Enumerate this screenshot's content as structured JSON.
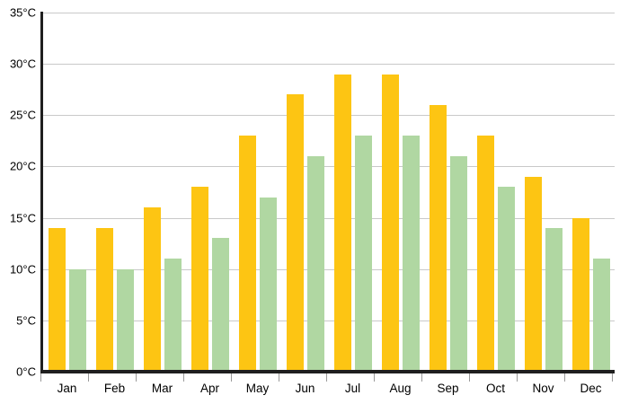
{
  "chart_data": {
    "type": "bar",
    "title": "",
    "xlabel": "",
    "ylabel": "",
    "categories": [
      "Jan",
      "Feb",
      "Mar",
      "Apr",
      "May",
      "Jun",
      "Jul",
      "Aug",
      "Sep",
      "Oct",
      "Nov",
      "Dec"
    ],
    "series": [
      {
        "name": "yellow",
        "color": "#FDC513",
        "values": [
          14,
          14,
          16,
          18,
          23,
          27,
          29,
          29,
          26,
          23,
          19,
          15
        ]
      },
      {
        "name": "green",
        "color": "#B0D7A2",
        "values": [
          10,
          10,
          11,
          13,
          17,
          21,
          23,
          23,
          21,
          18,
          14,
          11
        ]
      }
    ],
    "ylim": [
      0,
      35
    ],
    "y_ticks": [
      0,
      5,
      10,
      15,
      20,
      25,
      30,
      35
    ],
    "y_tick_labels": [
      "0°C",
      "5°C",
      "10°C",
      "15°C",
      "20°C",
      "25°C",
      "30°C",
      "35°C"
    ],
    "grid": true,
    "legend_position": "none"
  },
  "colors": {
    "background": "#FFFFFF",
    "axis": "#1F1F1F",
    "gridline": "#C9C9C9",
    "tick": "#9A9A9A",
    "text": "#000000",
    "bar_yellow": "#FDC513",
    "bar_green": "#B0D7A2"
  }
}
